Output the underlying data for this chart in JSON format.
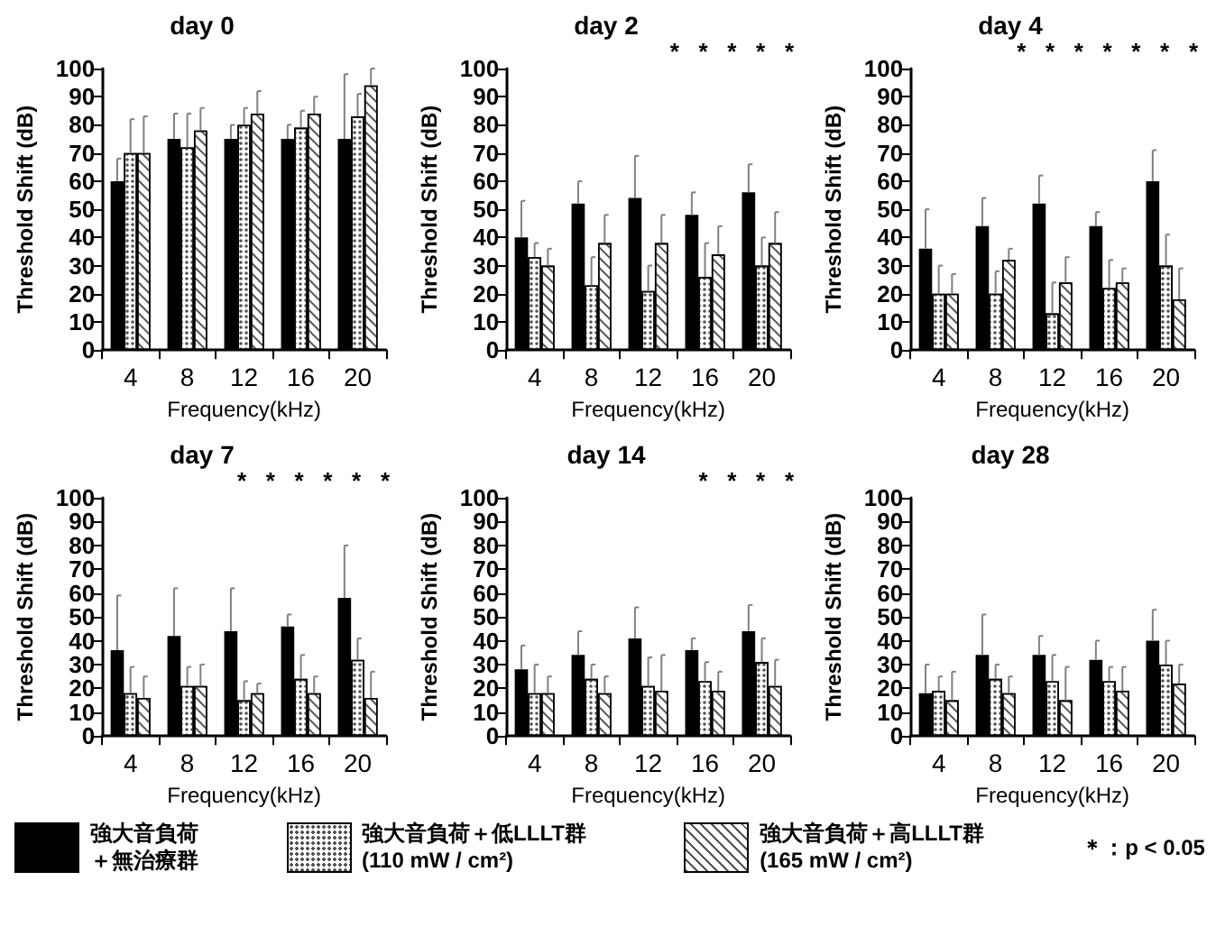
{
  "chart_data": [
    {
      "type": "bar",
      "title": "day 0",
      "xlabel": "Frequency(kHz)",
      "ylabel": "Threshold Shift (dB)",
      "categories": [
        "4",
        "8",
        "12",
        "16",
        "20"
      ],
      "ylim": [
        0,
        100
      ],
      "yticks": [
        0,
        10,
        20,
        30,
        40,
        50,
        60,
        70,
        80,
        90,
        100
      ],
      "grid": false,
      "legend": "bottom",
      "annotations": [
        "＊：p < 0.05"
      ],
      "series": [
        {
          "name": "強大音負荷＋無治療群",
          "color": "#000000",
          "values": [
            60,
            75,
            75,
            75,
            75
          ],
          "errors": [
            [
              60,
              68
            ],
            [
              75,
              84
            ],
            [
              75,
              80
            ],
            [
              75,
              80
            ],
            [
              75,
              98
            ]
          ]
        },
        {
          "name": "強大音負荷＋低LLLT群 (110 mW / cm²)",
          "color": "#ffffff",
          "values": [
            70,
            72,
            80,
            79,
            83
          ],
          "errors": [
            [
              70,
              82
            ],
            [
              72,
              84
            ],
            [
              80,
              86
            ],
            [
              79,
              85
            ],
            [
              83,
              91
            ]
          ]
        },
        {
          "name": "強大音負荷＋高LLLT群 (165 mW / cm²)",
          "color": "#ffffff",
          "values": [
            70,
            78,
            84,
            84,
            94
          ],
          "errors": [
            [
              70,
              83
            ],
            [
              78,
              86
            ],
            [
              84,
              92
            ],
            [
              84,
              90
            ],
            [
              94,
              100
            ]
          ]
        }
      ]
    },
    {
      "type": "bar",
      "title": "day 2",
      "xlabel": "Frequency(kHz)",
      "ylabel": "Threshold Shift (dB)",
      "categories": [
        "4",
        "8",
        "12",
        "16",
        "20"
      ],
      "ylim": [
        0,
        100
      ],
      "yticks": [
        0,
        10,
        20,
        30,
        40,
        50,
        60,
        70,
        80,
        90,
        100
      ],
      "grid": false,
      "annotations": [
        "*",
        "*",
        "*",
        "*",
        "*"
      ],
      "series": [
        {
          "color": "#000000",
          "values": [
            40,
            52,
            54,
            48,
            56
          ],
          "errors": [
            [
              40,
              53
            ],
            [
              52,
              60
            ],
            [
              54,
              69
            ],
            [
              48,
              56
            ],
            [
              56,
              66
            ]
          ]
        },
        {
          "color": "#ffffff",
          "values": [
            33,
            23,
            21,
            26,
            30
          ],
          "errors": [
            [
              33,
              38
            ],
            [
              23,
              33
            ],
            [
              21,
              30
            ],
            [
              26,
              38
            ],
            [
              30,
              40
            ]
          ]
        },
        {
          "color": "#ffffff",
          "values": [
            30,
            38,
            38,
            34,
            38
          ],
          "errors": [
            [
              30,
              36
            ],
            [
              38,
              48
            ],
            [
              38,
              48
            ],
            [
              34,
              44
            ],
            [
              38,
              49
            ]
          ]
        }
      ]
    },
    {
      "type": "bar",
      "title": "day 4",
      "xlabel": "Frequency(kHz)",
      "ylabel": "Threshold Shift (dB)",
      "categories": [
        "4",
        "8",
        "12",
        "16",
        "20"
      ],
      "ylim": [
        0,
        100
      ],
      "yticks": [
        0,
        10,
        20,
        30,
        40,
        50,
        60,
        70,
        80,
        90,
        100
      ],
      "grid": false,
      "annotations": [
        "*",
        "*",
        "*",
        "*",
        "*",
        "*",
        "*"
      ],
      "series": [
        {
          "color": "#000000",
          "values": [
            36,
            44,
            52,
            44,
            60
          ],
          "errors": [
            [
              36,
              50
            ],
            [
              44,
              54
            ],
            [
              52,
              62
            ],
            [
              44,
              49
            ],
            [
              60,
              71
            ]
          ]
        },
        {
          "color": "#ffffff",
          "values": [
            20,
            20,
            13,
            22,
            30
          ],
          "errors": [
            [
              20,
              30
            ],
            [
              20,
              28
            ],
            [
              13,
              24
            ],
            [
              22,
              32
            ],
            [
              30,
              41
            ]
          ]
        },
        {
          "color": "#ffffff",
          "values": [
            20,
            32,
            24,
            24,
            18
          ],
          "errors": [
            [
              20,
              27
            ],
            [
              32,
              36
            ],
            [
              24,
              33
            ],
            [
              24,
              29
            ],
            [
              18,
              29
            ]
          ]
        }
      ]
    },
    {
      "type": "bar",
      "title": "day 7",
      "xlabel": "Frequency(kHz)",
      "ylabel": "Threshold Shift (dB)",
      "categories": [
        "4",
        "8",
        "12",
        "16",
        "20"
      ],
      "ylim": [
        0,
        100
      ],
      "yticks": [
        0,
        10,
        20,
        30,
        40,
        50,
        60,
        70,
        80,
        90,
        100
      ],
      "grid": false,
      "annotations": [
        "*",
        "*",
        "*",
        "*",
        "*",
        "*"
      ],
      "series": [
        {
          "color": "#000000",
          "values": [
            36,
            42,
            44,
            46,
            58
          ],
          "errors": [
            [
              36,
              59
            ],
            [
              42,
              62
            ],
            [
              44,
              62
            ],
            [
              46,
              51
            ],
            [
              58,
              80
            ]
          ]
        },
        {
          "color": "#ffffff",
          "values": [
            18,
            21,
            15,
            24,
            32
          ],
          "errors": [
            [
              18,
              29
            ],
            [
              21,
              29
            ],
            [
              15,
              23
            ],
            [
              24,
              34
            ],
            [
              32,
              41
            ]
          ]
        },
        {
          "color": "#ffffff",
          "values": [
            16,
            21,
            18,
            18,
            16
          ],
          "errors": [
            [
              16,
              25
            ],
            [
              21,
              30
            ],
            [
              18,
              22
            ],
            [
              18,
              25
            ],
            [
              16,
              27
            ]
          ]
        }
      ]
    },
    {
      "type": "bar",
      "title": "day 14",
      "xlabel": "Frequency(kHz)",
      "ylabel": "Threshold Shift (dB)",
      "categories": [
        "4",
        "8",
        "12",
        "16",
        "20"
      ],
      "ylim": [
        0,
        100
      ],
      "yticks": [
        0,
        10,
        20,
        30,
        40,
        50,
        60,
        70,
        80,
        90,
        100
      ],
      "grid": false,
      "annotations": [
        "*",
        "*",
        "*",
        "*"
      ],
      "series": [
        {
          "color": "#000000",
          "values": [
            28,
            34,
            41,
            36,
            44
          ],
          "errors": [
            [
              28,
              38
            ],
            [
              34,
              44
            ],
            [
              41,
              54
            ],
            [
              36,
              41
            ],
            [
              44,
              55
            ]
          ]
        },
        {
          "color": "#ffffff",
          "values": [
            18,
            24,
            21,
            23,
            31
          ],
          "errors": [
            [
              18,
              30
            ],
            [
              24,
              30
            ],
            [
              21,
              33
            ],
            [
              23,
              31
            ],
            [
              31,
              41
            ]
          ]
        },
        {
          "color": "#ffffff",
          "values": [
            18,
            18,
            19,
            19,
            21
          ],
          "errors": [
            [
              18,
              25
            ],
            [
              18,
              25
            ],
            [
              19,
              34
            ],
            [
              19,
              27
            ],
            [
              21,
              32
            ]
          ]
        }
      ]
    },
    {
      "type": "bar",
      "title": "day 28",
      "xlabel": "Frequency(kHz)",
      "ylabel": "Threshold Shift (dB)",
      "categories": [
        "4",
        "8",
        "12",
        "16",
        "20"
      ],
      "ylim": [
        0,
        100
      ],
      "yticks": [
        0,
        10,
        20,
        30,
        40,
        50,
        60,
        70,
        80,
        90,
        100
      ],
      "grid": false,
      "series": [
        {
          "color": "#000000",
          "values": [
            18,
            34,
            34,
            32,
            40
          ],
          "errors": [
            [
              18,
              30
            ],
            [
              34,
              51
            ],
            [
              34,
              42
            ],
            [
              32,
              40
            ],
            [
              40,
              53
            ]
          ]
        },
        {
          "color": "#ffffff",
          "values": [
            19,
            24,
            23,
            23,
            30
          ],
          "errors": [
            [
              19,
              25
            ],
            [
              24,
              30
            ],
            [
              23,
              34
            ],
            [
              23,
              29
            ],
            [
              30,
              40
            ]
          ]
        },
        {
          "color": "#ffffff",
          "values": [
            15,
            18,
            15,
            19,
            22
          ],
          "errors": [
            [
              15,
              27
            ],
            [
              18,
              25
            ],
            [
              15,
              29
            ],
            [
              19,
              29
            ],
            [
              22,
              30
            ]
          ]
        }
      ]
    }
  ]
}
